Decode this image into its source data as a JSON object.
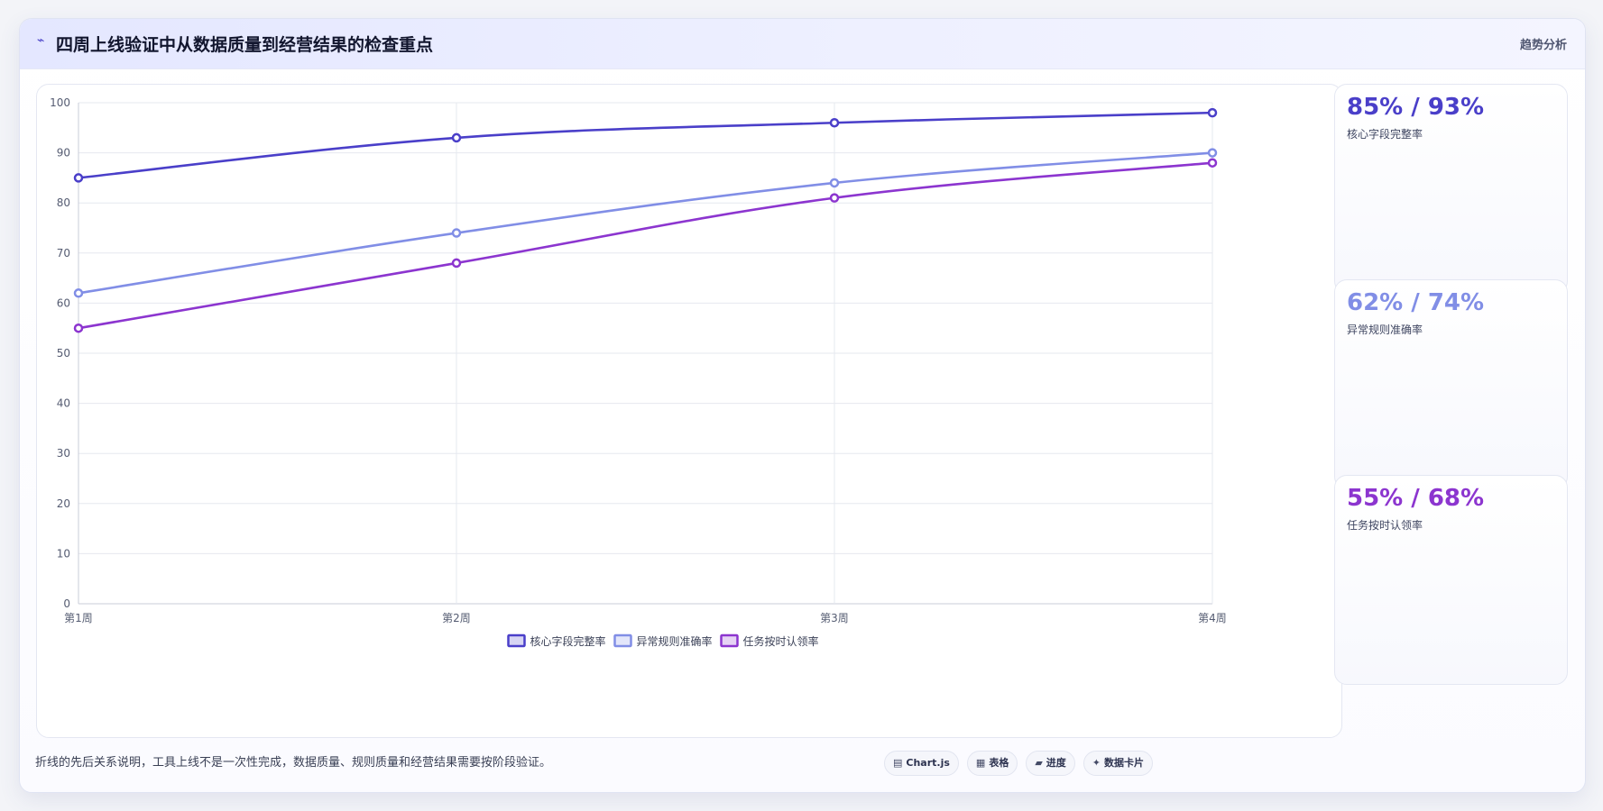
{
  "header": {
    "icon": "pulse-icon",
    "title": "四周上线验证中从数据质量到经营结果的检查重点",
    "badge": "趋势分析"
  },
  "chart_data": {
    "type": "line",
    "x": [
      "第1周",
      "第2周",
      "第3周",
      "第4周"
    ],
    "ylim": [
      0,
      100
    ],
    "yticks": [
      0,
      10,
      20,
      30,
      40,
      50,
      60,
      70,
      80,
      90,
      100
    ],
    "grid": true,
    "legend": "bottom-center",
    "series": [
      {
        "name": "核心字段完整率",
        "values": [
          85,
          93,
          96,
          98
        ],
        "color": "#4a3fc9"
      },
      {
        "name": "异常规则准确率",
        "values": [
          62,
          74,
          84,
          90
        ],
        "color": "#818ee6"
      },
      {
        "name": "任务按时认领率",
        "values": [
          55,
          68,
          81,
          88
        ],
        "color": "#8c35cf"
      }
    ]
  },
  "kpis": [
    {
      "value": "85% / 93%",
      "label": "核心字段完整率",
      "color": "#4a3fc9"
    },
    {
      "value": "62% / 74%",
      "label": "异常规则准确率",
      "color": "#818ee6"
    },
    {
      "value": "55% / 68%",
      "label": "任务按时认领率",
      "color": "#8c35cf"
    }
  ],
  "footer": {
    "note": "折线的先后关系说明，工具上线不是一次性完成，数据质量、规则质量和经营结果需要按阶段验证。",
    "chips": [
      {
        "icon": "▤",
        "label": "Chart.js"
      },
      {
        "icon": "▦",
        "label": "表格"
      },
      {
        "icon": "▰",
        "label": "进度"
      },
      {
        "icon": "✦",
        "label": "数据卡片"
      }
    ]
  }
}
